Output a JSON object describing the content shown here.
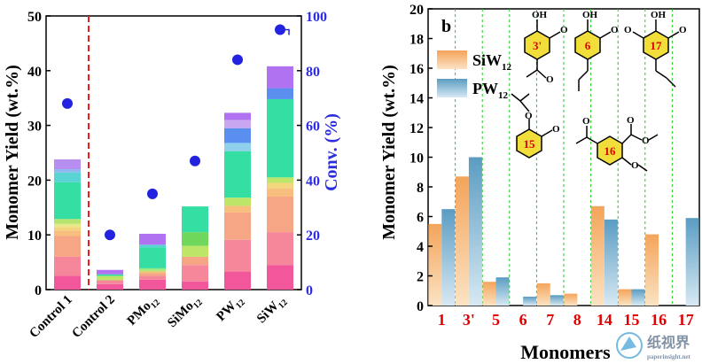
{
  "chart_data": [
    {
      "type": "bar",
      "subtype": "stacked-bar-with-scatter",
      "categories": [
        "Control 1",
        "Control 2",
        "PMo12",
        "SiMo12",
        "PW12",
        "SiW12"
      ],
      "category_labels": [
        {
          "main": "Control 1",
          "sub": ""
        },
        {
          "main": "Control 2",
          "sub": ""
        },
        {
          "main": "PMo",
          "sub": "12"
        },
        {
          "main": "SiMo",
          "sub": "12"
        },
        {
          "main": "PW",
          "sub": "12"
        },
        {
          "main": "SiW",
          "sub": "12"
        }
      ],
      "stacks": [
        [
          2.5,
          3.5,
          3.8,
          1.0,
          0.6,
          0.6,
          0.9,
          6.7,
          1.8,
          0.6,
          1.8
        ],
        [
          1.0,
          0.7,
          0.8,
          0.3,
          0.8
        ],
        [
          1.8,
          0.7,
          0.5,
          0.3,
          0.3,
          0.3,
          3.8,
          0.5,
          2.0
        ],
        [
          1.5,
          3.0,
          1.5,
          2.0,
          2.5,
          4.7
        ],
        [
          3.3,
          5.8,
          5.0,
          1.2,
          1.5,
          8.5,
          1.5,
          2.7,
          1.5,
          1.3
        ],
        [
          4.5,
          6.0,
          6.5,
          1.5,
          1.0,
          1.0,
          14.3,
          2.0,
          4.0
        ]
      ],
      "stack_colors": [
        [
          "#f2579b",
          "#f6879b",
          "#f7a685",
          "#f7be7d",
          "#f2d57c",
          "#e6e88a",
          "#b6e46f",
          "#35dfa3",
          "#5ad4d2",
          "#8fb8f0",
          "#b58ef0"
        ],
        [
          "#f2579b",
          "#f6879b",
          "#bde668",
          "#35dfa3",
          "#b072f0"
        ],
        [
          "#f2579b",
          "#f6879b",
          "#f7a685",
          "#f7be7d",
          "#b6e46f",
          "#8eea7e",
          "#35dfa3",
          "#5ad4d2",
          "#b072f0"
        ],
        [
          "#f2579b",
          "#f6879b",
          "#f7a685",
          "#bde668",
          "#6fd85c",
          "#35dfa3"
        ],
        [
          "#f2579b",
          "#f6879b",
          "#f7a685",
          "#f7be7d",
          "#bde668",
          "#35dfa3",
          "#8fd0ea",
          "#5a8ff0",
          "#c8a6f0",
          "#b072f0"
        ],
        [
          "#f2579b",
          "#f6879b",
          "#f7a685",
          "#f7be7d",
          "#f2d57c",
          "#bde668",
          "#35dfa3",
          "#5a8ff0",
          "#b072f0"
        ]
      ],
      "conversion": [
        68,
        20,
        35,
        47,
        84,
        95
      ],
      "ylabel": "Monomer Yield (wt.%)",
      "y2label": "Conv. (%)",
      "ylim": [
        0,
        50
      ],
      "y2lim": [
        0,
        100
      ],
      "yticks": [
        "0",
        "10",
        "20",
        "30",
        "40",
        "50"
      ],
      "y2ticks": [
        "0",
        "20",
        "40",
        "60",
        "80",
        "100"
      ],
      "divider_after_category": "Control 1"
    },
    {
      "type": "bar",
      "panel_label": "b",
      "categories": [
        "1",
        "3'",
        "5",
        "6",
        "7",
        "8",
        "14",
        "15",
        "16",
        "17"
      ],
      "series": [
        {
          "name": "SiW",
          "name_sub": "12",
          "values": [
            5.5,
            8.7,
            1.6,
            0.0,
            1.5,
            0.8,
            6.7,
            1.1,
            4.8,
            0.0
          ]
        },
        {
          "name": "PW",
          "name_sub": "12",
          "values": [
            6.5,
            10.0,
            1.9,
            0.6,
            0.7,
            0.0,
            5.8,
            1.1,
            0.0,
            5.9
          ]
        }
      ],
      "series_colors": [
        "#f4a45a",
        "#5fa0c4"
      ],
      "xlabel": "Monomers",
      "ylabel": "Monomer Yield (wt.%)",
      "ylim": [
        0,
        20
      ],
      "yticks": [
        "0",
        "2",
        "4",
        "6",
        "8",
        "10",
        "12",
        "14",
        "16",
        "18",
        "20"
      ],
      "legend_position": "top-left",
      "structure_labels": [
        "3'",
        "6",
        "17",
        "15",
        "16"
      ]
    }
  ],
  "watermark": {
    "brand": "纸视界",
    "url": "paperinsight.net"
  }
}
